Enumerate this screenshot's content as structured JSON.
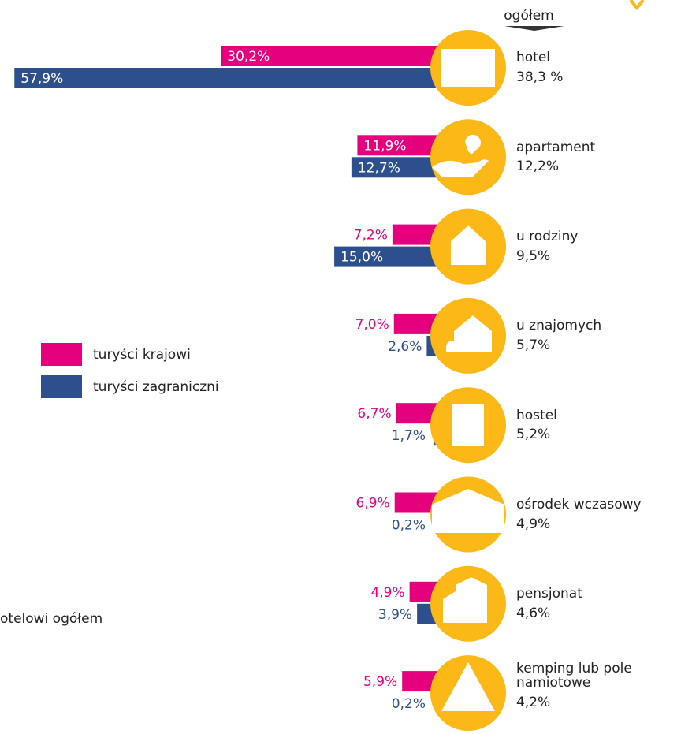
{
  "chart_data": {
    "type": "bar",
    "header": "ogółem",
    "note": "otelowi ogółem",
    "categories": [
      "hotel",
      "apartament",
      "u rodziny",
      "u znajomych",
      "hostel",
      "ośrodek wczasowy",
      "pensjonat",
      "kemping lub pole namiotowe"
    ],
    "totals": [
      38.3,
      12.2,
      9.5,
      5.7,
      5.2,
      4.9,
      4.6,
      4.2
    ],
    "totals_labels": [
      "38,3 %",
      "12,2%",
      "9,5%",
      "5,7%",
      "5,2%",
      "4,9%",
      "4,6%",
      "4,2%"
    ],
    "series": [
      {
        "name": "turyści krajowi",
        "color": "#e5007d",
        "values": [
          30.2,
          11.9,
          7.2,
          7.0,
          6.7,
          6.9,
          4.9,
          5.9
        ],
        "value_labels": [
          "30,2%",
          "11,9%",
          "7,2%",
          "7,0%",
          "6,7%",
          "6,9%",
          "4,9%",
          "5,9%"
        ]
      },
      {
        "name": "turyści zagraniczni",
        "color": "#2d4f8e",
        "values": [
          57.9,
          12.7,
          15.0,
          2.6,
          1.7,
          0.2,
          3.9,
          0.2
        ],
        "value_labels": [
          "57,9%",
          "12,7%",
          "15,0%",
          "2,6%",
          "1,7%",
          "0,2%",
          "3,9%",
          "0,2%"
        ]
      }
    ],
    "icon_color": "#fbb817"
  }
}
